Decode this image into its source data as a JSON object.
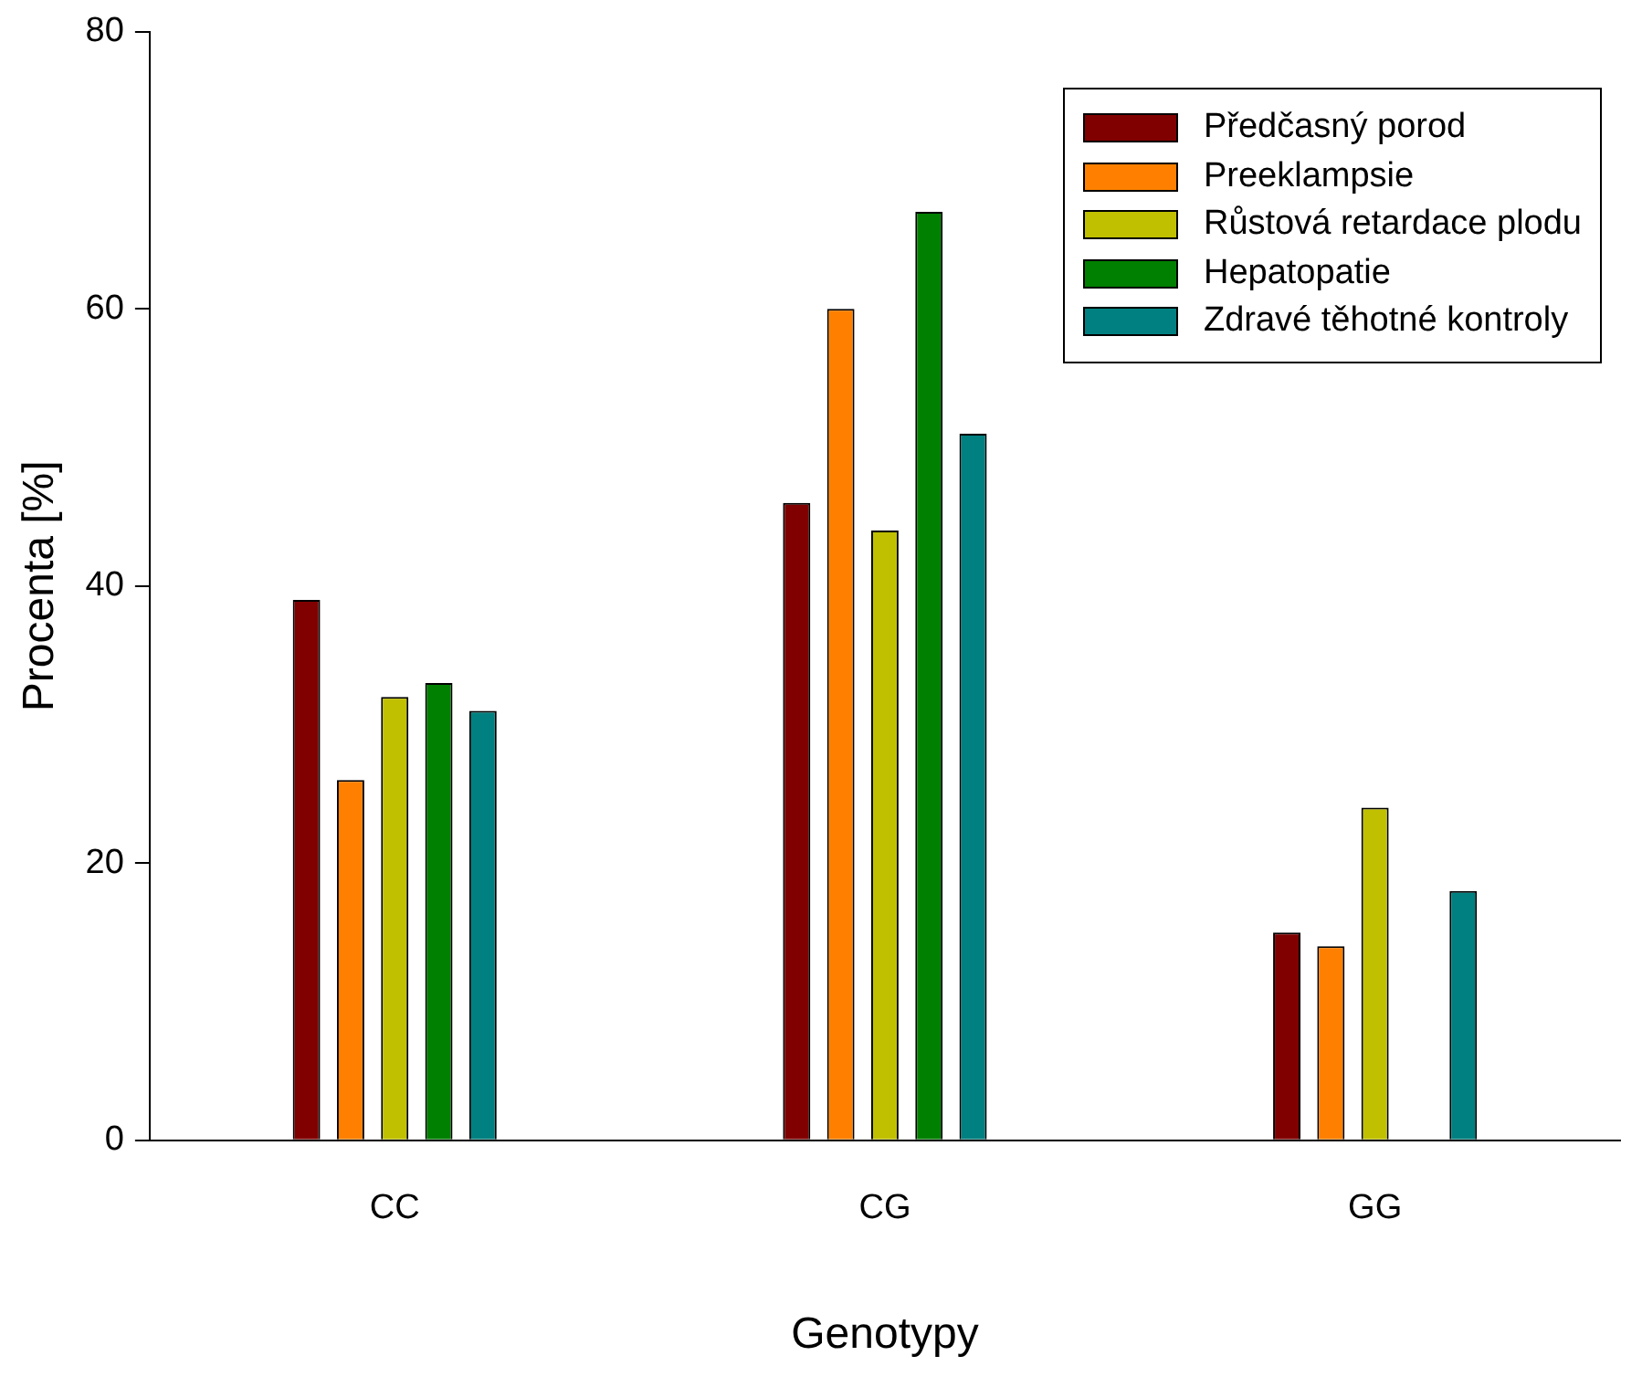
{
  "chart_data": {
    "type": "bar",
    "xlabel": "Genotypy",
    "ylabel": "Procenta [%]",
    "categories": [
      "CC",
      "CG",
      "GG"
    ],
    "series": [
      {
        "name": "Předčasný porod",
        "color": "#800000",
        "values": [
          39,
          46,
          15
        ]
      },
      {
        "name": "Preeklampsie",
        "color": "#ff8000",
        "values": [
          26,
          60,
          14
        ]
      },
      {
        "name": "Růstová retardace plodu",
        "color": "#c0c000",
        "values": [
          32,
          44,
          24
        ]
      },
      {
        "name": "Hepatopatie",
        "color": "#008000",
        "values": [
          33,
          67,
          null
        ]
      },
      {
        "name": "Zdravé těhotné kontroly",
        "color": "#008080",
        "values": [
          31,
          51,
          18
        ]
      }
    ],
    "ylim": [
      0,
      80
    ],
    "yticks": [
      0,
      20,
      40,
      60,
      80
    ],
    "grid": false,
    "legend": "top right"
  }
}
